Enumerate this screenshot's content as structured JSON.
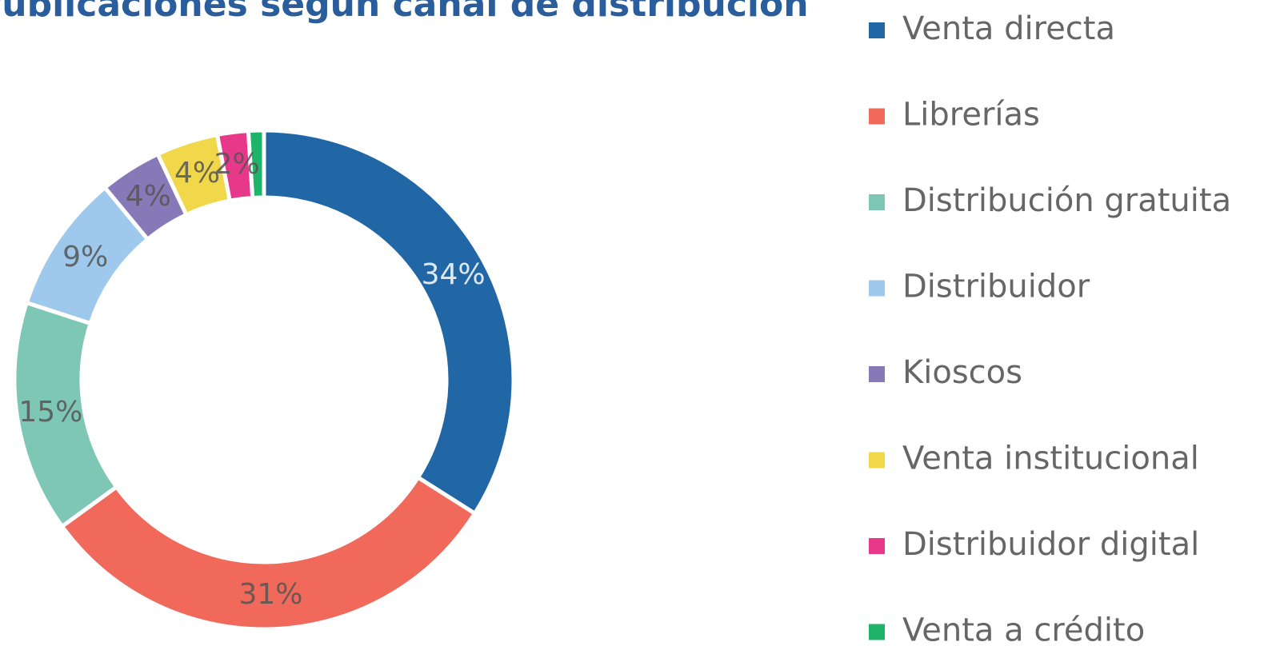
{
  "chart_data": {
    "type": "donut",
    "title": "Publicaciones según canal de distribución",
    "categories": [
      "Venta directa",
      "Librerías",
      "Distribución gratuita",
      "Distribuidor",
      "Kioscos",
      "Venta institucional",
      "Distribuidor digital",
      "Venta a crédito"
    ],
    "values": [
      34,
      31,
      15,
      9,
      4,
      4,
      2,
      1
    ],
    "value_labels": [
      "34%",
      "31%",
      "15%",
      "9%",
      "4%",
      "4%",
      "2%",
      null
    ],
    "colors": [
      "#2166a5",
      "#f0695a",
      "#7fc7b5",
      "#9ec8ec",
      "#8679b8",
      "#f0d84a",
      "#e8388a",
      "#1fb46a"
    ],
    "legend": "right"
  }
}
